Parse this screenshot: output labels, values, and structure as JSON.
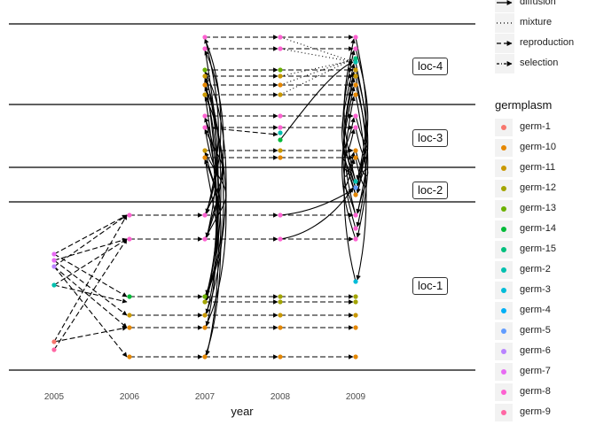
{
  "diagram": {
    "x_axis": {
      "title": "year",
      "ticks": [
        "2005",
        "2006",
        "2007",
        "2008",
        "2009"
      ]
    },
    "locations": [
      "loc-4",
      "loc-3",
      "loc-2",
      "loc-1"
    ],
    "line_legend": [
      {
        "label": "diffusion",
        "style": "solid"
      },
      {
        "label": "mixture",
        "style": "dotted"
      },
      {
        "label": "reproduction",
        "style": "dashed"
      },
      {
        "label": "selection",
        "style": "dashed-selection"
      }
    ],
    "germplasm_legend": {
      "title": "germplasm",
      "items": [
        {
          "label": "germ-1",
          "color": "#F8766D"
        },
        {
          "label": "germ-10",
          "color": "#E58700"
        },
        {
          "label": "germ-11",
          "color": "#C99800"
        },
        {
          "label": "germ-12",
          "color": "#A3A500"
        },
        {
          "label": "germ-13",
          "color": "#6BB100"
        },
        {
          "label": "germ-14",
          "color": "#00BA38"
        },
        {
          "label": "germ-15",
          "color": "#00BF7D"
        },
        {
          "label": "germ-2",
          "color": "#00C0AF"
        },
        {
          "label": "germ-3",
          "color": "#00BCD8"
        },
        {
          "label": "germ-4",
          "color": "#00B0F6"
        },
        {
          "label": "germ-5",
          "color": "#619CFF"
        },
        {
          "label": "germ-6",
          "color": "#B983FF"
        },
        {
          "label": "germ-7",
          "color": "#E76BF3"
        },
        {
          "label": "germ-8",
          "color": "#FD61D1"
        },
        {
          "label": "germ-9",
          "color": "#FF67A4"
        }
      ]
    }
  }
}
